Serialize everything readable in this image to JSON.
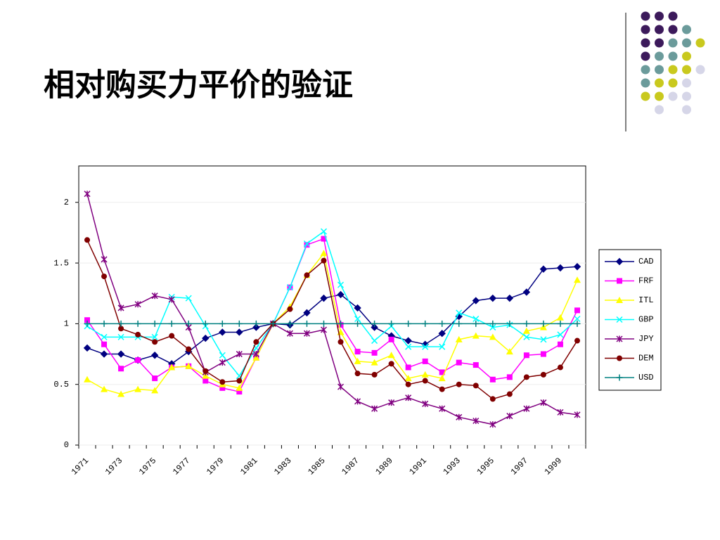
{
  "title": "相对购买力平价的验证",
  "chart_data": {
    "type": "line",
    "categories": [
      "1971",
      null,
      "1973",
      null,
      "1975",
      null,
      "1977",
      null,
      "1979",
      null,
      "1981",
      null,
      "1983",
      null,
      "1985",
      null,
      "1987",
      null,
      "1989",
      null,
      "1991",
      null,
      "1993",
      null,
      "1995",
      null,
      "1997",
      null,
      "1999",
      null
    ],
    "ylim": [
      0,
      2.3
    ],
    "yticks": [
      0,
      0.5,
      1,
      1.5,
      2
    ],
    "grid": true,
    "legend": "right",
    "series": [
      {
        "name": "CAD",
        "color": "#000080",
        "marker": "diamond",
        "values": [
          0.8,
          0.75,
          0.75,
          0.7,
          0.74,
          0.67,
          0.77,
          0.88,
          0.93,
          0.93,
          0.97,
          1.0,
          0.99,
          1.09,
          1.21,
          1.24,
          1.13,
          0.97,
          0.9,
          0.86,
          0.83,
          0.92,
          1.06,
          1.19,
          1.21,
          1.21,
          1.26,
          1.45,
          1.46,
          1.47
        ]
      },
      {
        "name": "FRF",
        "color": "#ff00ff",
        "marker": "square",
        "values": [
          1.03,
          0.83,
          0.63,
          0.7,
          0.55,
          0.64,
          0.65,
          0.53,
          0.47,
          0.44,
          0.72,
          1.0,
          1.3,
          1.65,
          1.7,
          0.99,
          0.77,
          0.76,
          0.87,
          0.64,
          0.69,
          0.6,
          0.68,
          0.66,
          0.54,
          0.56,
          0.74,
          0.75,
          0.83,
          1.11
        ]
      },
      {
        "name": "ITL",
        "color": "#ffff00",
        "marker": "triangle",
        "values": [
          0.54,
          0.46,
          0.42,
          0.46,
          0.45,
          0.64,
          0.65,
          0.57,
          0.5,
          0.47,
          0.72,
          1.0,
          1.14,
          1.4,
          1.58,
          0.93,
          0.69,
          0.68,
          0.74,
          0.55,
          0.58,
          0.55,
          0.87,
          0.9,
          0.89,
          0.77,
          0.94,
          0.97,
          1.05,
          1.36
        ]
      },
      {
        "name": "GBP",
        "color": "#00ffff",
        "marker": "x",
        "values": [
          0.98,
          0.89,
          0.89,
          0.89,
          0.89,
          1.22,
          1.21,
          0.98,
          0.74,
          0.57,
          0.8,
          1.0,
          1.3,
          1.66,
          1.76,
          1.32,
          1.04,
          0.86,
          0.98,
          0.81,
          0.81,
          0.81,
          1.09,
          1.04,
          0.97,
          0.99,
          0.89,
          0.87,
          0.91,
          1.04
        ]
      },
      {
        "name": "JPY",
        "color": "#800080",
        "marker": "star",
        "values": [
          2.07,
          1.53,
          1.13,
          1.16,
          1.23,
          1.2,
          0.97,
          0.6,
          0.68,
          0.75,
          0.75,
          1.0,
          0.92,
          0.92,
          0.95,
          0.48,
          0.36,
          0.3,
          0.35,
          0.39,
          0.34,
          0.3,
          0.23,
          0.2,
          0.17,
          0.24,
          0.3,
          0.35,
          0.27,
          0.25
        ]
      },
      {
        "name": "DEM",
        "color": "#800000",
        "marker": "circle",
        "values": [
          1.69,
          1.39,
          0.96,
          0.91,
          0.85,
          0.9,
          0.79,
          0.61,
          0.52,
          0.53,
          0.85,
          1.0,
          1.12,
          1.4,
          1.52,
          0.85,
          0.59,
          0.58,
          0.67,
          0.5,
          0.53,
          0.46,
          0.5,
          0.49,
          0.38,
          0.42,
          0.56,
          0.58,
          0.64,
          0.86
        ]
      },
      {
        "name": "USD",
        "color": "#008080",
        "marker": "plus",
        "values": [
          1,
          1,
          1,
          1,
          1,
          1,
          1,
          1,
          1,
          1,
          1,
          1,
          1,
          1,
          1,
          1,
          1,
          1,
          1,
          1,
          1,
          1,
          1,
          1,
          1,
          1,
          1,
          1,
          1,
          1
        ]
      }
    ]
  }
}
